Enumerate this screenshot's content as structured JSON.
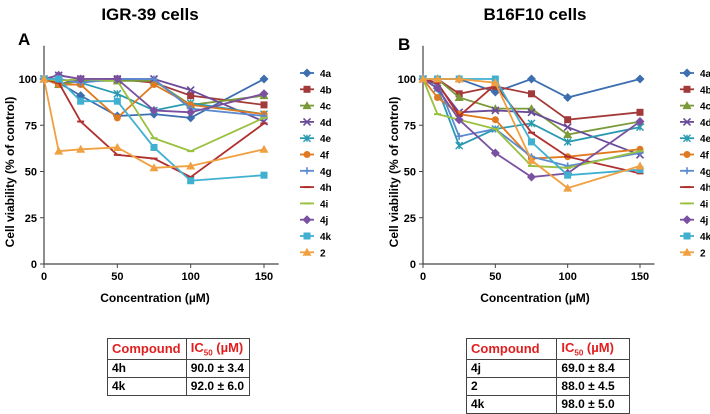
{
  "chart_data": [
    {
      "type": "line",
      "panel_label": "A",
      "title": "IGR-39 cells",
      "xlabel": "Concentration (µM)",
      "ylabel": "Cell viability (% of control)",
      "x": [
        0,
        10,
        25,
        50,
        75,
        100,
        150
      ],
      "xticks": [
        0,
        50,
        100,
        150
      ],
      "yticks": [
        0,
        25,
        50,
        75,
        100
      ],
      "xlim": [
        0,
        160
      ],
      "ylim": [
        0,
        118
      ],
      "legend": "right",
      "series": [
        {
          "name": "4a",
          "values": [
            100,
            98,
            91,
            80,
            81,
            79,
            100
          ]
        },
        {
          "name": "4b",
          "values": [
            100,
            97,
            100,
            100,
            98,
            91,
            86
          ]
        },
        {
          "name": "4c",
          "values": [
            100,
            97,
            99,
            99,
            99,
            86,
            91
          ]
        },
        {
          "name": "4d",
          "values": [
            100,
            102,
            100,
            100,
            100,
            94,
            77
          ]
        },
        {
          "name": "4e",
          "values": [
            100,
            100,
            98,
            92,
            83,
            87,
            81
          ]
        },
        {
          "name": "4f",
          "values": [
            100,
            97,
            97,
            79,
            97,
            86,
            81
          ]
        },
        {
          "name": "4g",
          "values": [
            100,
            100,
            98,
            100,
            100,
            84,
            80
          ]
        },
        {
          "name": "4h",
          "values": [
            100,
            98,
            77,
            59,
            57,
            47,
            76
          ]
        },
        {
          "name": "4i",
          "values": [
            100,
            99,
            100,
            99,
            68,
            61,
            79
          ]
        },
        {
          "name": "4j",
          "values": [
            100,
            102,
            100,
            100,
            83,
            82,
            92
          ]
        },
        {
          "name": "4k",
          "values": [
            100,
            100,
            88,
            88,
            63,
            45,
            48
          ]
        },
        {
          "name": "2",
          "values": [
            100,
            61,
            62,
            63,
            52,
            53,
            62
          ]
        }
      ]
    },
    {
      "type": "line",
      "panel_label": "B",
      "title": "B16F10 cells",
      "xlabel": "Concentration (µM)",
      "ylabel": "Cell viability (% of control)",
      "x": [
        0,
        10,
        25,
        50,
        75,
        100,
        150
      ],
      "xticks": [
        0,
        50,
        100,
        150
      ],
      "yticks": [
        0,
        25,
        50,
        75,
        100
      ],
      "xlim": [
        0,
        160
      ],
      "ylim": [
        0,
        118
      ],
      "legend": "right",
      "series": [
        {
          "name": "4a",
          "values": [
            100,
            100,
            100,
            93,
            100,
            90,
            100
          ]
        },
        {
          "name": "4b",
          "values": [
            100,
            100,
            92,
            96,
            92,
            78,
            82
          ]
        },
        {
          "name": "4c",
          "values": [
            100,
            100,
            90,
            84,
            84,
            70,
            77
          ]
        },
        {
          "name": "4d",
          "values": [
            100,
            97,
            82,
            83,
            82,
            74,
            59
          ]
        },
        {
          "name": "4e",
          "values": [
            100,
            95,
            64,
            73,
            76,
            66,
            74
          ]
        },
        {
          "name": "4f",
          "values": [
            100,
            90,
            81,
            78,
            57,
            58,
            62
          ]
        },
        {
          "name": "4g",
          "values": [
            100,
            98,
            69,
            73,
            58,
            53,
            60
          ]
        },
        {
          "name": "4h",
          "values": [
            100,
            98,
            80,
            97,
            71,
            58,
            49
          ]
        },
        {
          "name": "4i",
          "values": [
            100,
            81,
            78,
            73,
            53,
            52,
            61
          ]
        },
        {
          "name": "4j",
          "values": [
            100,
            95,
            78,
            60,
            47,
            49,
            77
          ]
        },
        {
          "name": "4k",
          "values": [
            100,
            100,
            100,
            100,
            66,
            48,
            51
          ]
        },
        {
          "name": "2",
          "values": [
            100,
            100,
            100,
            98,
            56,
            41,
            53
          ]
        }
      ]
    }
  ],
  "colors": [
    "#3d6fb0",
    "#a33a3a",
    "#7a9a3a",
    "#6a4a9a",
    "#2a9ab0",
    "#e07a20",
    "#5a8ad0",
    "#b03030",
    "#9ac040",
    "#7a50a0",
    "#40b0d0",
    "#f0a040"
  ],
  "markers": [
    "diamond",
    "square",
    "triangle",
    "x",
    "star",
    "circle",
    "plus",
    "dash",
    "dash",
    "diamond",
    "square",
    "triangle"
  ],
  "tables": [
    {
      "header": [
        "Compound",
        "IC",
        "50",
        "(µM)"
      ],
      "rows": [
        [
          "4h",
          "90.0 ± 3.4"
        ],
        [
          "4k",
          "92.0 ± 6.0"
        ]
      ]
    },
    {
      "header": [
        "Compound",
        "IC",
        "50",
        "(µM)"
      ],
      "rows": [
        [
          "4j",
          "69.0 ± 8.4"
        ],
        [
          "2",
          "88.0 ± 4.5"
        ],
        [
          "4k",
          "98.0 ± 5.0"
        ]
      ]
    }
  ]
}
